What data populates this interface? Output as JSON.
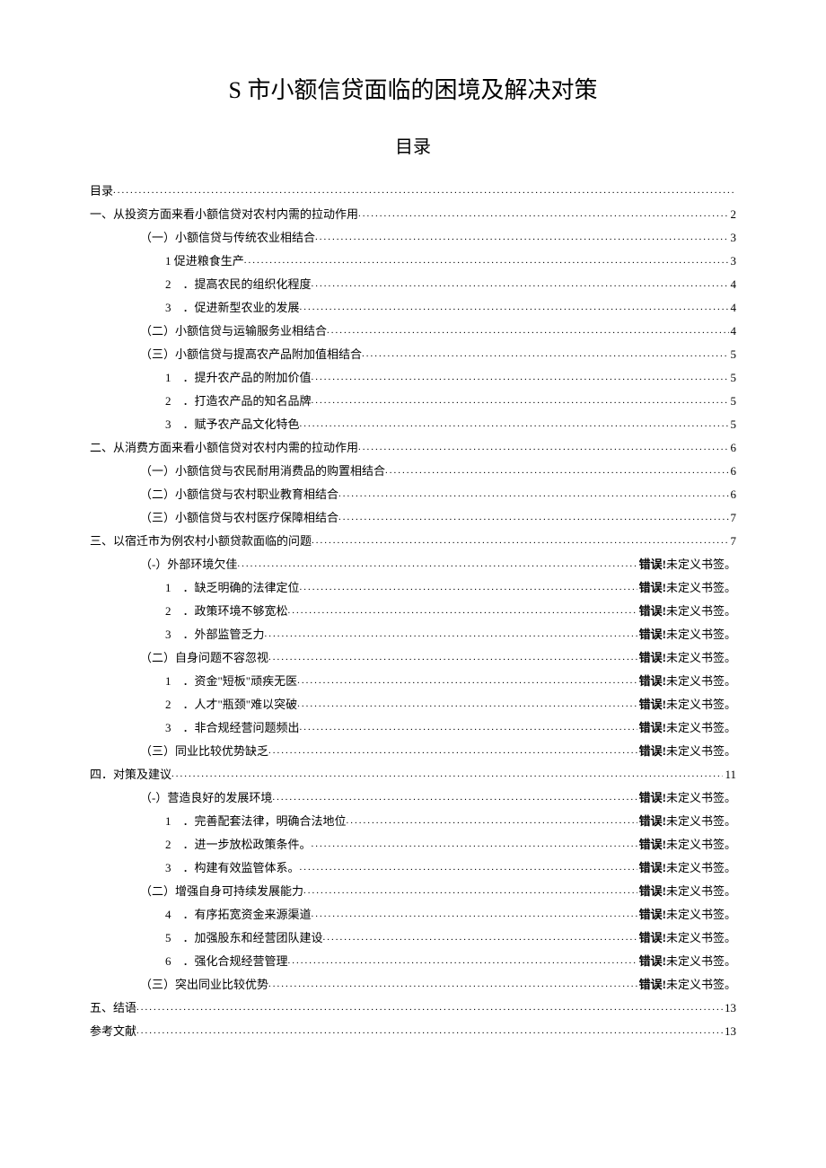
{
  "title": "S 市小额信贷面临的困境及解决对策",
  "subtitle": "目录",
  "error_prefix": "错误!",
  "error_suffix": "未定义书签。",
  "dots_char": ".",
  "toc": [
    {
      "indent": 0,
      "text": "目录",
      "page": ""
    },
    {
      "indent": 0,
      "text": "一、从投资方面来看小额信贷对农村内需的拉动作用",
      "page": "2"
    },
    {
      "indent": 1,
      "text": "（一）小额信贷与传统农业相结合",
      "page": "3"
    },
    {
      "indent": 2,
      "text": "1 促进粮食生产",
      "page": "3"
    },
    {
      "indent": 2,
      "text": "2　．提高农民的组织化程度",
      "page": "4"
    },
    {
      "indent": 2,
      "text": "3　．促进新型农业的发展",
      "page": "4"
    },
    {
      "indent": 1,
      "text": "（二）小额信贷与运输服务业相结合",
      "page": "4"
    },
    {
      "indent": 1,
      "text": "（三）小额信贷与提高农产品附加值相结合",
      "page": "5"
    },
    {
      "indent": 2,
      "text": "1　．提升农产品的附加价值",
      "page": "5"
    },
    {
      "indent": 2,
      "text": "2　．打造农产品的知名品牌",
      "page": "5"
    },
    {
      "indent": 2,
      "text": "3　．赋予农产品文化特色",
      "page": "5"
    },
    {
      "indent": 0,
      "text": "二、从消费方面来看小额信贷对农村内需的拉动作用",
      "page": "6"
    },
    {
      "indent": 1,
      "text": "（一）小额信贷与农民耐用消费品的购置相结合",
      "page": "6"
    },
    {
      "indent": 1,
      "text": "（二）小额信贷与农村职业教育相结合",
      "page": "6"
    },
    {
      "indent": 1,
      "text": "（三）小额信贷与农村医疗保障相结合",
      "page": "7"
    },
    {
      "indent": 0,
      "text": "三、以宿迁市为例农村小额贷款面临的问题",
      "page": "7"
    },
    {
      "indent": 1,
      "text": "（-）外部环境欠佳",
      "page": "ERR"
    },
    {
      "indent": 2,
      "text": "1　．缺乏明确的法律定位",
      "page": "ERR"
    },
    {
      "indent": 2,
      "text": "2　．政策环境不够宽松",
      "page": "ERR"
    },
    {
      "indent": 2,
      "text": "3　．外部监管乏力",
      "page": "ERR"
    },
    {
      "indent": 1,
      "text": "（二）自身问题不容忽视",
      "page": "ERR"
    },
    {
      "indent": 2,
      "text": "1　．资金\"短板\"顽疾无医",
      "page": "ERR"
    },
    {
      "indent": 2,
      "text": "2　．人才\"瓶颈\"难以突破",
      "page": "ERR"
    },
    {
      "indent": 2,
      "text": "3　．非合规经营问题频出",
      "page": "ERR"
    },
    {
      "indent": 1,
      "text": "（三）同业比较优势缺乏",
      "page": "ERR"
    },
    {
      "indent": 0,
      "text": "四．对策及建议",
      "page": "11"
    },
    {
      "indent": 1,
      "text": "（-）营造良好的发展环境",
      "page": "ERR"
    },
    {
      "indent": 2,
      "text": "1　．完善配套法律，明确合法地位",
      "page": "ERR"
    },
    {
      "indent": 2,
      "text": "2　．进一步放松政策条件。",
      "page": "ERR"
    },
    {
      "indent": 2,
      "text": "3　．构建有效监管体系。",
      "page": "ERR"
    },
    {
      "indent": 1,
      "text": "（二）增强自身可持续发展能力",
      "page": "ERR"
    },
    {
      "indent": 2,
      "text": "4　．有序拓宽资金来源渠道",
      "page": "ERR"
    },
    {
      "indent": 2,
      "text": "5　．加强股东和经营团队建设",
      "page": "ERR"
    },
    {
      "indent": 2,
      "text": "6　．强化合规经营管理",
      "page": "ERR"
    },
    {
      "indent": 1,
      "text": "（三）突出同业比较优势",
      "page": "ERR"
    },
    {
      "indent": 0,
      "text": "五、结语",
      "page": "13"
    },
    {
      "indent": 0,
      "text": "参考文献",
      "page": "13"
    }
  ]
}
